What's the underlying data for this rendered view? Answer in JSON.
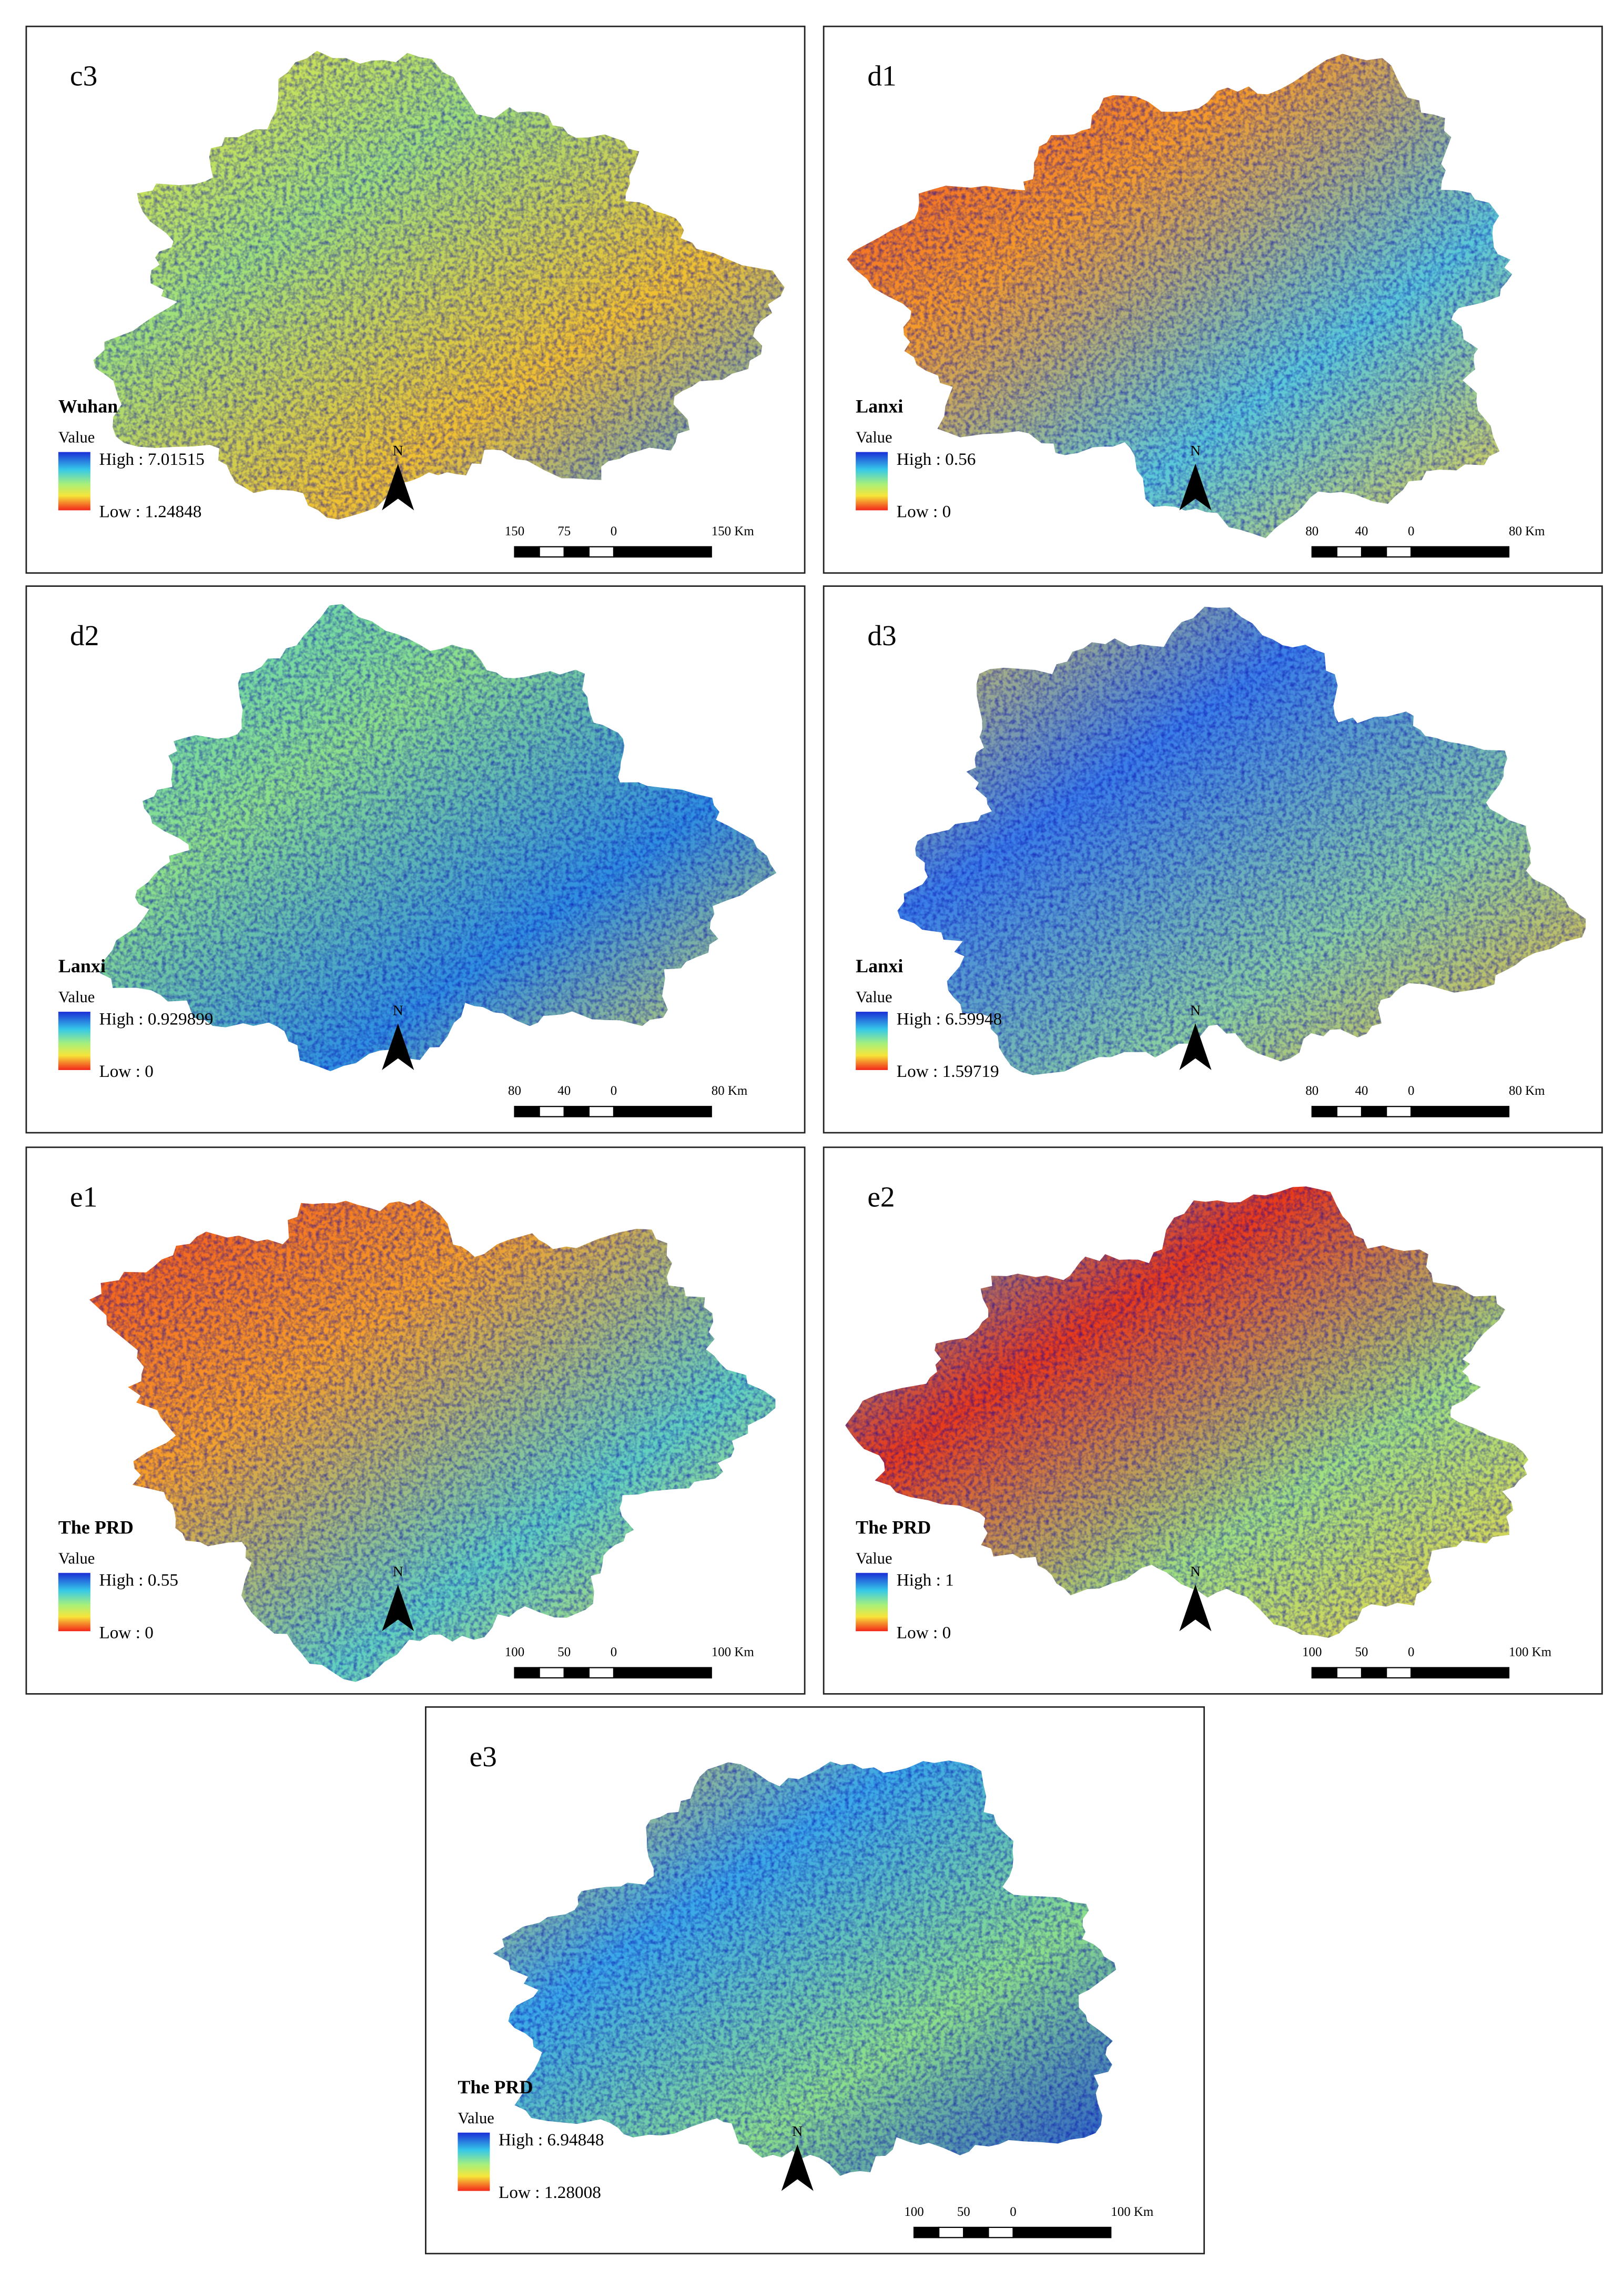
{
  "panels": [
    {
      "label": "c3",
      "region": "Wuhan",
      "legend_title": "Value",
      "high": "High : 7.01515",
      "low": "Low : 1.24848",
      "north": "N",
      "scale_labels": [
        "150",
        "75",
        "0",
        "150 Km"
      ]
    },
    {
      "label": "d1",
      "region": "Lanxi",
      "legend_title": "Value",
      "high": "High : 0.56",
      "low": "Low : 0",
      "north": "N",
      "scale_labels": [
        "80",
        "40",
        "0",
        "80 Km"
      ]
    },
    {
      "label": "d2",
      "region": "Lanxi",
      "legend_title": "Value",
      "high": "High : 0.929899",
      "low": "Low : 0",
      "north": "N",
      "scale_labels": [
        "80",
        "40",
        "0",
        "80 Km"
      ]
    },
    {
      "label": "d3",
      "region": "Lanxi",
      "legend_title": "Value",
      "high": "High : 6.59948",
      "low": "Low : 1.59719",
      "north": "N",
      "scale_labels": [
        "80",
        "40",
        "0",
        "80 Km"
      ]
    },
    {
      "label": "e1",
      "region": "The PRD",
      "legend_title": "Value",
      "high": "High : 0.55",
      "low": "Low : 0",
      "north": "N",
      "scale_labels": [
        "100",
        "50",
        "0",
        "100 Km"
      ]
    },
    {
      "label": "e2",
      "region": "The PRD",
      "legend_title": "Value",
      "high": "High : 1",
      "low": "Low : 0",
      "north": "N",
      "scale_labels": [
        "100",
        "50",
        "0",
        "100 Km"
      ]
    },
    {
      "label": "e3",
      "region": "The PRD",
      "legend_title": "Value",
      "high": "High : 6.94848",
      "low": "Low : 1.28008",
      "north": "N",
      "scale_labels": [
        "100",
        "50",
        "0",
        "100 Km"
      ]
    }
  ]
}
